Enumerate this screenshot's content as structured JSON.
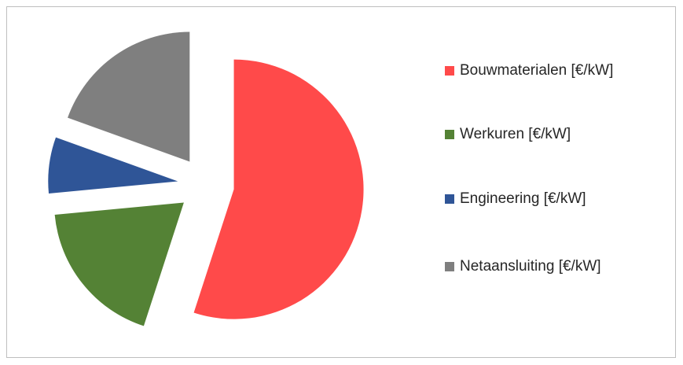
{
  "chart_data": {
    "type": "pie",
    "categories": [
      "Bouwmaterialen [€/kW]",
      "Werkuren [€/kW]",
      "Engineering [€/kW]",
      "Netaansluiting [€/kW]"
    ],
    "values": [
      55,
      18.5,
      7,
      19.5
    ],
    "colors": [
      "#ff4a4a",
      "#548235",
      "#2f5597",
      "#7f7f7f"
    ],
    "exploded": true,
    "legend": "right"
  }
}
